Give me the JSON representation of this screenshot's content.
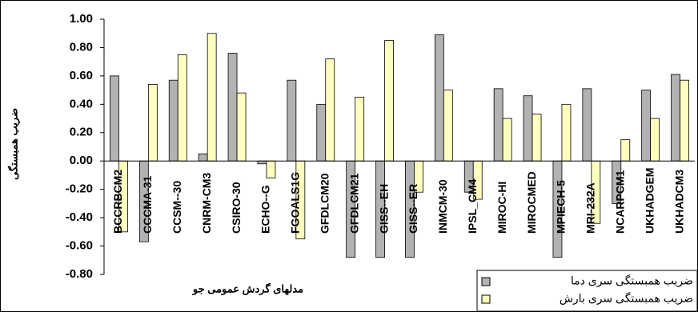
{
  "chart_data": {
    "type": "bar",
    "y_label": "ضریب همبستگی",
    "x_label": "مدلهای گردش عمومی جو",
    "categories": [
      "BCCRBCM2",
      "CCCMA-31",
      "CCSM--30",
      "CNRM-CM3",
      "CSIRO-30",
      "ECHO--G",
      "FGOALS1G",
      "GFDLCM20",
      "GFDLCM21",
      "GISS--EH",
      "GISS--ER",
      "INMCM-30",
      "IPSL_CM4",
      "MIROC-HI",
      "MIROCMED",
      "MPIECH-5",
      "MRI-232A",
      "NCARPCM1",
      "UKHADGEM",
      "UKHADCM3"
    ],
    "series": [
      {
        "name": "ضریب همبستگی سری دما",
        "color": "#b2b2b2",
        "values": [
          0.6,
          -0.57,
          0.57,
          0.05,
          0.76,
          -0.02,
          0.57,
          0.4,
          -0.68,
          -0.68,
          -0.68,
          0.89,
          -0.22,
          0.51,
          0.46,
          -0.68,
          0.51,
          -0.3,
          0.5,
          0.61
        ]
      },
      {
        "name": "ضریب همبستگی سری بارش",
        "color": "#ffffc0",
        "values": [
          -0.5,
          0.54,
          0.75,
          0.9,
          0.48,
          -0.12,
          -0.55,
          0.72,
          0.45,
          0.85,
          -0.22,
          0.5,
          -0.27,
          0.3,
          0.33,
          0.4,
          -0.44,
          0.15,
          0.3,
          0.57
        ]
      }
    ],
    "ylim": [
      -0.8,
      1.0
    ],
    "yticks": [
      {
        "value": 1.0,
        "label": "1.00"
      },
      {
        "value": 0.8,
        "label": "0.80"
      },
      {
        "value": 0.6,
        "label": "0.60"
      },
      {
        "value": 0.4,
        "label": "0.40"
      },
      {
        "value": 0.2,
        "label": "0.20"
      },
      {
        "value": 0,
        "label": "0.00"
      },
      {
        "value": -0.2,
        "label": "-0.20"
      },
      {
        "value": -0.4,
        "label": "-0.40"
      },
      {
        "value": -0.6,
        "label": "-0.60"
      },
      {
        "value": -0.8,
        "label": "-0.80"
      }
    ],
    "legend": "bottom-right"
  }
}
